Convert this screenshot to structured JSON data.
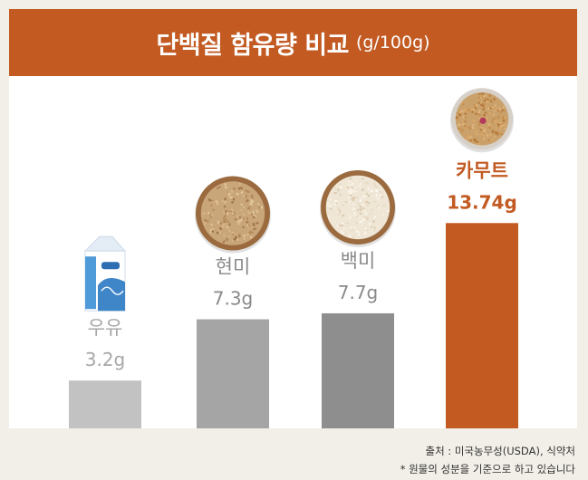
{
  "header": {
    "title": "단백질 함유량 비교",
    "unit": "(g/100g)"
  },
  "colors": {
    "banner": "#c25a22",
    "highlight": "#c25a22",
    "bar_light": "#c2c2c2",
    "bar_mid": "#a5a5a5",
    "bar_dark": "#8e8e8e",
    "label_muted": "#a7a7a7",
    "label_dark": "#8a8a8a"
  },
  "chart_data": {
    "type": "bar",
    "categories": [
      "우유",
      "현미",
      "백미",
      "카무트"
    ],
    "values": [
      3.2,
      7.3,
      7.7,
      13.74
    ],
    "value_labels": [
      "3.2g",
      "7.3g",
      "7.7g",
      "13.74g"
    ],
    "title": "단백질 함유량 비교",
    "unit": "(g/100g)",
    "highlight_category": "카무트",
    "icons": [
      "milk-carton-icon",
      "brown-rice-bowl-icon",
      "white-rice-bowl-icon",
      "kamut-bowl-icon"
    ]
  },
  "footer": {
    "source": "출처 : 미국농무성(USDA), 식약처",
    "note": "* 원물의 성분을 기준으로 하고 있습니다"
  }
}
